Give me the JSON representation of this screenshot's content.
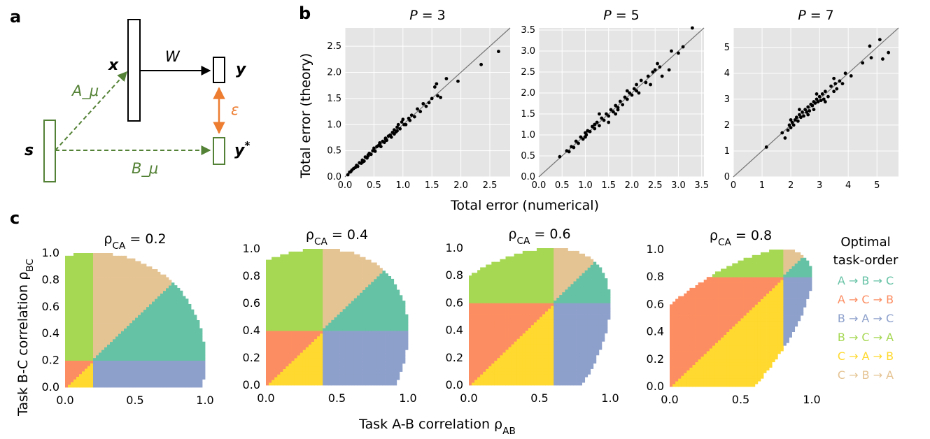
{
  "panel_labels": {
    "a": "a",
    "b": "b",
    "c": "c"
  },
  "diagram": {
    "x_label": "x",
    "y_label": "y",
    "ystar_label": "y*",
    "s_label": "s",
    "w_label": "W",
    "epsilon_label": "ε",
    "a_mu_label": "A_μ",
    "b_mu_label": "B_μ",
    "colors": {
      "green": "#538135",
      "orange": "#ED7D31",
      "black": "#000000"
    }
  },
  "panel_b": {
    "ylabel": "Total error (theory)",
    "xlabel": "Total error (numerical)",
    "titles": [
      "P = 3",
      "P = 5",
      "P = 7"
    ],
    "background": "#E5E5E5"
  },
  "panel_c": {
    "titles": [
      "ρ_CA = 0.2",
      "ρ_CA = 0.4",
      "ρ_CA = 0.6",
      "ρ_CA = 0.8"
    ],
    "ylabel": "Task B-C correlation ρ_BC",
    "xlabel": "Task A-B correlation ρ_AB",
    "legend_title": [
      "Optimal",
      "task-order"
    ],
    "legend": [
      {
        "label": "A → B → C",
        "color": "#66C2A5"
      },
      {
        "label": "A → C → B",
        "color": "#FC8D62"
      },
      {
        "label": "B → A → C",
        "color": "#8DA0CB"
      },
      {
        "label": "B → C → A",
        "color": "#A6D854"
      },
      {
        "label": "C → A → B",
        "color": "#FFD92F"
      },
      {
        "label": "C → B → A",
        "color": "#E5C494"
      }
    ]
  },
  "chart_data": [
    {
      "type": "scatter",
      "title": "P = 3",
      "xlabel": "Total error (numerical)",
      "ylabel": "Total error (theory)",
      "xlim": [
        0,
        2.85
      ],
      "ylim": [
        0,
        2.85
      ],
      "xticks": [
        "0.0",
        "0.5",
        "1.0",
        "1.5",
        "2.0",
        "2.5"
      ],
      "yticks": [
        "0.0",
        "0.5",
        "1.0",
        "1.5",
        "2.0",
        "2.5"
      ],
      "identity_line": true,
      "points": [
        [
          0.05,
          0.04
        ],
        [
          0.08,
          0.09
        ],
        [
          0.1,
          0.1
        ],
        [
          0.12,
          0.13
        ],
        [
          0.15,
          0.16
        ],
        [
          0.18,
          0.18
        ],
        [
          0.2,
          0.22
        ],
        [
          0.22,
          0.2
        ],
        [
          0.25,
          0.27
        ],
        [
          0.28,
          0.26
        ],
        [
          0.3,
          0.32
        ],
        [
          0.33,
          0.3
        ],
        [
          0.35,
          0.38
        ],
        [
          0.38,
          0.36
        ],
        [
          0.4,
          0.42
        ],
        [
          0.42,
          0.45
        ],
        [
          0.45,
          0.43
        ],
        [
          0.48,
          0.5
        ],
        [
          0.5,
          0.55
        ],
        [
          0.52,
          0.49
        ],
        [
          0.55,
          0.58
        ],
        [
          0.58,
          0.6
        ],
        [
          0.6,
          0.63
        ],
        [
          0.62,
          0.58
        ],
        [
          0.65,
          0.68
        ],
        [
          0.68,
          0.66
        ],
        [
          0.7,
          0.74
        ],
        [
          0.72,
          0.7
        ],
        [
          0.75,
          0.78
        ],
        [
          0.78,
          0.8
        ],
        [
          0.8,
          0.76
        ],
        [
          0.82,
          0.85
        ],
        [
          0.85,
          0.9
        ],
        [
          0.88,
          0.86
        ],
        [
          0.9,
          0.95
        ],
        [
          0.92,
          1.0
        ],
        [
          0.95,
          0.92
        ],
        [
          0.98,
          1.05
        ],
        [
          1.0,
          1.1
        ],
        [
          1.05,
          1.0
        ],
        [
          1.1,
          1.12
        ],
        [
          1.15,
          1.18
        ],
        [
          1.2,
          1.15
        ],
        [
          1.25,
          1.3
        ],
        [
          1.3,
          1.25
        ],
        [
          1.35,
          1.4
        ],
        [
          1.4,
          1.35
        ],
        [
          1.5,
          1.5
        ],
        [
          1.55,
          1.72
        ],
        [
          1.58,
          1.78
        ],
        [
          1.6,
          1.55
        ],
        [
          1.65,
          1.52
        ],
        [
          1.75,
          1.88
        ],
        [
          1.95,
          1.83
        ],
        [
          2.35,
          2.15
        ],
        [
          2.65,
          2.4
        ],
        [
          0.6,
          0.65
        ],
        [
          0.7,
          0.72
        ],
        [
          0.4,
          0.4
        ],
        [
          0.3,
          0.28
        ],
        [
          0.85,
          0.82
        ],
        [
          0.9,
          0.88
        ],
        [
          1.02,
          1.0
        ],
        [
          1.12,
          1.08
        ],
        [
          1.45,
          1.42
        ]
      ]
    },
    {
      "type": "scatter",
      "title": "P = 5",
      "xlabel": "Total error (numerical)",
      "ylabel": "Total error (theory)",
      "xlim": [
        0,
        3.55
      ],
      "ylim": [
        0,
        3.55
      ],
      "xticks": [
        "0.0",
        "0.5",
        "1.0",
        "1.5",
        "2.0",
        "2.5",
        "3.0",
        "3.5"
      ],
      "yticks": [
        "0.0",
        "0.5",
        "1.0",
        "1.5",
        "2.0",
        "2.5",
        "3.0",
        "3.5"
      ],
      "identity_line": true,
      "points": [
        [
          0.45,
          0.48
        ],
        [
          0.6,
          0.62
        ],
        [
          0.65,
          0.6
        ],
        [
          0.7,
          0.72
        ],
        [
          0.75,
          0.7
        ],
        [
          0.8,
          0.85
        ],
        [
          0.85,
          0.8
        ],
        [
          0.9,
          0.95
        ],
        [
          0.95,
          0.9
        ],
        [
          1.0,
          1.05
        ],
        [
          1.02,
          1.0
        ],
        [
          1.05,
          1.1
        ],
        [
          1.1,
          1.08
        ],
        [
          1.15,
          1.2
        ],
        [
          1.2,
          1.15
        ],
        [
          1.25,
          1.3
        ],
        [
          1.3,
          1.22
        ],
        [
          1.35,
          1.4
        ],
        [
          1.4,
          1.35
        ],
        [
          1.45,
          1.5
        ],
        [
          1.5,
          1.45
        ],
        [
          1.55,
          1.6
        ],
        [
          1.6,
          1.55
        ],
        [
          1.65,
          1.7
        ],
        [
          1.7,
          1.65
        ],
        [
          1.75,
          1.8
        ],
        [
          1.8,
          1.72
        ],
        [
          1.85,
          1.9
        ],
        [
          1.9,
          1.85
        ],
        [
          1.95,
          2.0
        ],
        [
          2.0,
          1.95
        ],
        [
          2.05,
          2.1
        ],
        [
          2.1,
          2.05
        ],
        [
          2.15,
          2.0
        ],
        [
          2.2,
          2.3
        ],
        [
          2.3,
          2.25
        ],
        [
          2.35,
          2.4
        ],
        [
          2.4,
          2.2
        ],
        [
          2.45,
          2.5
        ],
        [
          2.5,
          2.55
        ],
        [
          2.55,
          2.7
        ],
        [
          2.6,
          2.62
        ],
        [
          2.65,
          2.4
        ],
        [
          2.8,
          2.55
        ],
        [
          2.85,
          3.0
        ],
        [
          3.0,
          2.95
        ],
        [
          3.1,
          3.1
        ],
        [
          3.3,
          3.55
        ],
        [
          1.5,
          1.3
        ],
        [
          1.3,
          1.5
        ],
        [
          1.7,
          1.6
        ],
        [
          1.9,
          2.05
        ],
        [
          1.2,
          1.25
        ],
        [
          1.0,
          0.95
        ],
        [
          1.65,
          1.5
        ],
        [
          2.1,
          2.2
        ]
      ]
    },
    {
      "type": "scatter",
      "title": "P = 7",
      "xlabel": "Total error (numerical)",
      "ylabel": "Total error (theory)",
      "xlim": [
        0,
        5.75
      ],
      "ylim": [
        0,
        5.75
      ],
      "xticks": [
        "0",
        "1",
        "2",
        "3",
        "4",
        "5"
      ],
      "yticks": [
        "0",
        "1",
        "2",
        "3",
        "4",
        "5"
      ],
      "identity_line": true,
      "points": [
        [
          1.15,
          1.15
        ],
        [
          1.7,
          1.7
        ],
        [
          1.8,
          1.5
        ],
        [
          1.9,
          1.8
        ],
        [
          1.95,
          2.0
        ],
        [
          2.0,
          1.9
        ],
        [
          2.05,
          2.1
        ],
        [
          2.1,
          2.0
        ],
        [
          2.15,
          2.2
        ],
        [
          2.2,
          2.3
        ],
        [
          2.25,
          2.15
        ],
        [
          2.3,
          2.4
        ],
        [
          2.35,
          2.3
        ],
        [
          2.4,
          2.5
        ],
        [
          2.45,
          2.35
        ],
        [
          2.5,
          2.6
        ],
        [
          2.55,
          2.5
        ],
        [
          2.6,
          2.7
        ],
        [
          2.65,
          2.55
        ],
        [
          2.7,
          2.8
        ],
        [
          2.75,
          2.75
        ],
        [
          2.8,
          2.9
        ],
        [
          2.85,
          2.85
        ],
        [
          2.9,
          3.0
        ],
        [
          2.95,
          2.9
        ],
        [
          3.0,
          3.1
        ],
        [
          3.05,
          2.95
        ],
        [
          3.1,
          3.2
        ],
        [
          3.15,
          3.0
        ],
        [
          3.2,
          3.3
        ],
        [
          3.3,
          3.1
        ],
        [
          3.4,
          3.5
        ],
        [
          3.5,
          3.3
        ],
        [
          3.55,
          3.6
        ],
        [
          3.6,
          3.4
        ],
        [
          3.7,
          3.7
        ],
        [
          3.8,
          3.6
        ],
        [
          3.9,
          4.0
        ],
        [
          4.1,
          3.9
        ],
        [
          4.5,
          4.4
        ],
        [
          4.8,
          4.6
        ],
        [
          4.75,
          5.05
        ],
        [
          5.1,
          5.3
        ],
        [
          5.2,
          4.55
        ],
        [
          5.4,
          4.8
        ],
        [
          2.3,
          2.6
        ],
        [
          2.6,
          2.4
        ],
        [
          2.9,
          3.2
        ],
        [
          3.2,
          2.9
        ],
        [
          3.5,
          3.8
        ],
        [
          2.0,
          2.2
        ],
        [
          2.8,
          2.6
        ]
      ]
    },
    {
      "type": "heatmap",
      "title": "ρ_CA = 0.2",
      "xlabel": "Task A-B correlation ρ_AB",
      "ylabel": "Task B-C correlation ρ_BC",
      "xlim": [
        0,
        1
      ],
      "ylim": [
        0,
        1
      ],
      "xticks": [
        "0.0",
        "0.5",
        "1.0"
      ],
      "yticks": [
        "0.0",
        "0.2",
        "0.4",
        "0.6",
        "0.8",
        "1.0"
      ],
      "categories": [
        "A → B → C",
        "A → C → B",
        "B → A → C",
        "B → C → A",
        "C → A → B",
        "C → B → A"
      ]
    },
    {
      "type": "heatmap",
      "title": "ρ_CA = 0.4",
      "xlabel": "Task A-B correlation ρ_AB",
      "ylabel": "Task B-C correlation ρ_BC",
      "xlim": [
        0,
        1
      ],
      "ylim": [
        0,
        1
      ],
      "xticks": [
        "0.0",
        "0.5",
        "1.0"
      ],
      "yticks": [
        "0.0",
        "0.2",
        "0.4",
        "0.6",
        "0.8",
        "1.0"
      ],
      "categories": [
        "A → B → C",
        "A → C → B",
        "B → A → C",
        "B → C → A",
        "C → A → B",
        "C → B → A"
      ]
    },
    {
      "type": "heatmap",
      "title": "ρ_CA = 0.6",
      "xlabel": "Task A-B correlation ρ_AB",
      "ylabel": "Task B-C correlation ρ_BC",
      "xlim": [
        0,
        1
      ],
      "ylim": [
        0,
        1
      ],
      "xticks": [
        "0.0",
        "0.5",
        "1.0"
      ],
      "yticks": [
        "0.0",
        "0.2",
        "0.4",
        "0.6",
        "0.8",
        "1.0"
      ],
      "categories": [
        "A → B → C",
        "A → C → B",
        "B → A → C",
        "B → C → A",
        "C → A → B",
        "C → B → A"
      ]
    },
    {
      "type": "heatmap",
      "title": "ρ_CA = 0.8",
      "xlabel": "Task A-B correlation ρ_AB",
      "ylabel": "Task B-C correlation ρ_BC",
      "xlim": [
        0,
        1
      ],
      "ylim": [
        0,
        1
      ],
      "xticks": [
        "0.0",
        "0.5",
        "1.0"
      ],
      "yticks": [
        "0.0",
        "0.2",
        "0.4",
        "0.6",
        "0.8",
        "1.0"
      ],
      "categories": [
        "A → B → C",
        "A → C → B",
        "B → A → C",
        "B → C → A",
        "C → A → B",
        "C → B → A"
      ]
    }
  ]
}
